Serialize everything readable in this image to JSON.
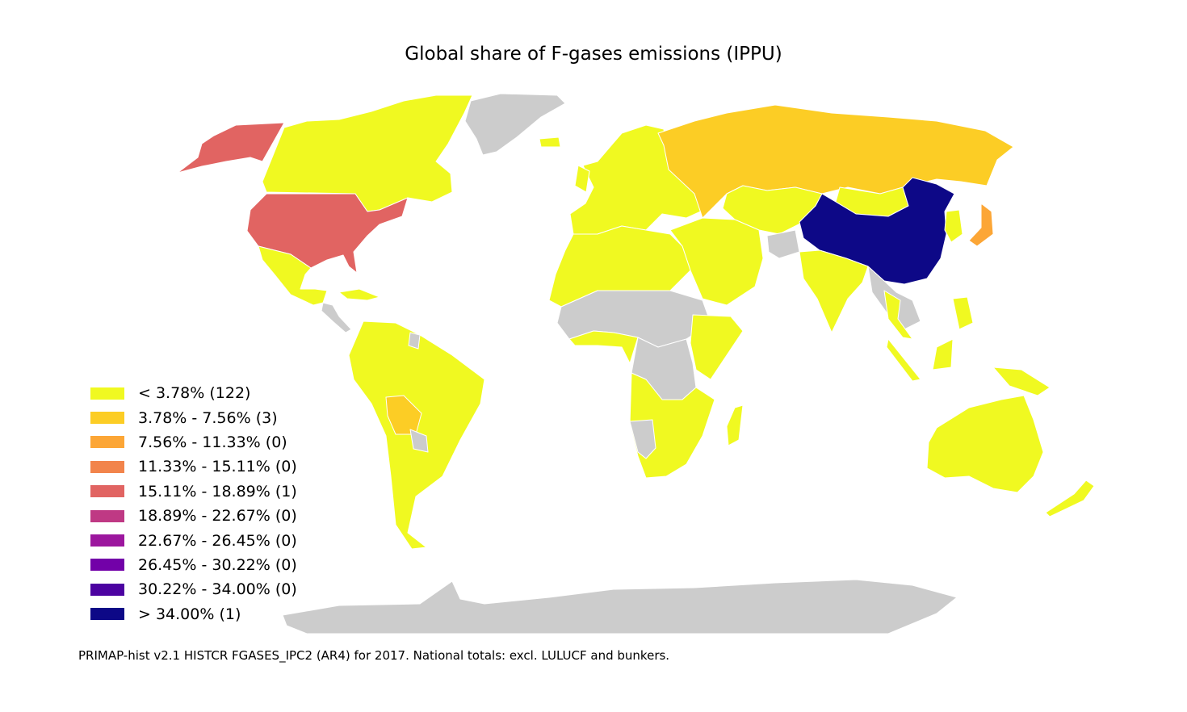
{
  "title": "Global share of F-gases emissions (IPPU)",
  "footer": "PRIMAP-hist v2.1 HISTCR FGASES_IPC2 (AR4) for 2017. National totals: excl. LULUCF and bunkers.",
  "no_data_color": "#cccccc",
  "legend": [
    {
      "label": "< 3.78% (122)",
      "color": "#f0f921"
    },
    {
      "label": "3.78% - 7.56% (3)",
      "color": "#fccd25"
    },
    {
      "label": "7.56% - 11.33% (0)",
      "color": "#fca636"
    },
    {
      "label": "11.33% - 15.11% (0)",
      "color": "#f2844b"
    },
    {
      "label": "15.11% - 18.89% (1)",
      "color": "#e16462"
    },
    {
      "label": "18.89% - 22.67% (0)",
      "color": "#bf3984"
    },
    {
      "label": "22.67% - 26.45% (0)",
      "color": "#9c179e"
    },
    {
      "label": "26.45% - 30.22% (0)",
      "color": "#7201a8"
    },
    {
      "label": "30.22% - 34.00% (0)",
      "color": "#4c02a1"
    },
    {
      "label": "> 34.00% (1)",
      "color": "#0d0887"
    }
  ]
}
